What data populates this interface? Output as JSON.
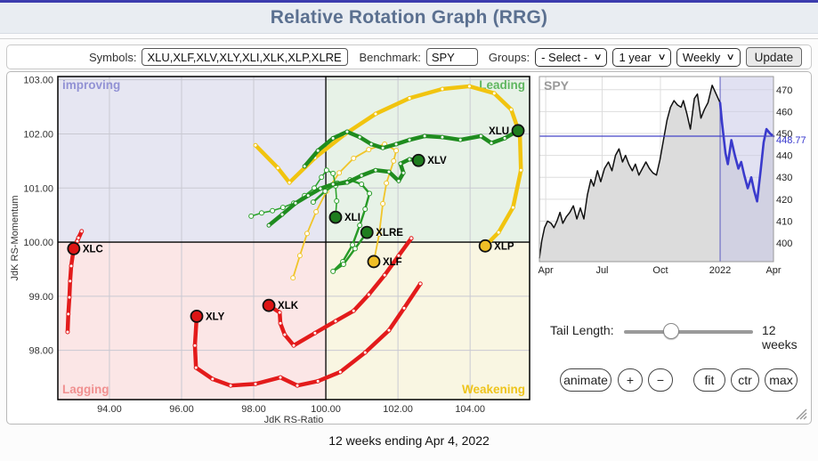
{
  "header": {
    "title": "Relative Rotation Graph (RRG)"
  },
  "controls": {
    "symbols_label": "Symbols:",
    "symbols_value": "XLU,XLF,XLV,XLY,XLI,XLK,XLP,XLRE,XLC",
    "benchmark_label": "Benchmark:",
    "benchmark_value": "SPY",
    "groups_label": "Groups:",
    "groups_value": "- Select -",
    "period_value": "1 year",
    "interval_value": "Weekly",
    "update_label": "Update"
  },
  "panel": {
    "spy_label": "SPY",
    "last_price": "448.77",
    "tail_length_label": "Tail Length:",
    "tail_length_value": "12 weeks",
    "buttons": [
      "animate",
      "+",
      "−",
      "fit",
      "ctr",
      "max"
    ]
  },
  "caption": "12 weeks ending Apr 4, 2022",
  "chart_data": [
    {
      "type": "scatter",
      "title": "Relative Rotation Graph",
      "xlabel": "JdK RS-Ratio",
      "ylabel": "JdK RS-Momentum",
      "xlim": [
        92.57,
        105.65
      ],
      "ylim": [
        97.09,
        103.06
      ],
      "x_ticks": [
        94,
        96,
        98,
        100,
        102,
        104
      ],
      "y_ticks": [
        98,
        99,
        100,
        101,
        102,
        103
      ],
      "center": [
        100,
        100
      ],
      "grid_color": "#c9c9d2",
      "quadrants": {
        "improving": {
          "label": "improving",
          "corner": "tl",
          "bg": "#e6e6f2",
          "label_color": "#9292d4"
        },
        "leading": {
          "label": "Leading",
          "corner": "tr",
          "bg": "#e7f2e7",
          "label_color": "#5fb65f"
        },
        "lagging": {
          "label": "Lagging",
          "corner": "bl",
          "bg": "#fbe6e6",
          "label_color": "#f09090"
        },
        "weakening": {
          "label": "Weakening",
          "corner": "br",
          "bg": "#f9f6e2",
          "label_color": "#eec41c"
        }
      },
      "series": [
        {
          "name": "XLF",
          "color": "#f0c52a",
          "marker_color": "#f0bf26",
          "width": 1.8,
          "dot_r": 2.5,
          "label_side": "right",
          "points": [
            [
              99.09,
              99.34
            ],
            [
              99.28,
              99.75
            ],
            [
              99.48,
              100.16
            ],
            [
              99.73,
              100.56
            ],
            [
              100.02,
              100.94
            ],
            [
              100.37,
              101.28
            ],
            [
              100.77,
              101.55
            ],
            [
              101.19,
              101.71
            ],
            [
              101.63,
              101.81
            ],
            [
              101.95,
              101.69
            ],
            [
              101.88,
              101.5
            ],
            [
              101.68,
              101.09
            ],
            [
              101.58,
              100.71
            ],
            [
              101.48,
              100.15
            ],
            [
              101.33,
              99.64
            ]
          ]
        },
        {
          "name": "XLI",
          "color": "#2da32d",
          "marker_color": "#1e7d1e",
          "width": 1.6,
          "dot_r": 2.5,
          "label_side": "right",
          "points": [
            [
              97.93,
              100.48
            ],
            [
              98.22,
              100.54
            ],
            [
              98.52,
              100.58
            ],
            [
              98.81,
              100.64
            ],
            [
              99.11,
              100.72
            ],
            [
              99.41,
              100.86
            ],
            [
              99.68,
              101.0
            ],
            [
              99.88,
              101.2
            ],
            [
              100.02,
              101.33
            ],
            [
              100.2,
              101.27
            ],
            [
              100.27,
              101.04
            ],
            [
              100.3,
              100.76
            ],
            [
              100.27,
              100.46
            ]
          ]
        },
        {
          "name": "XLRE",
          "color": "#279a27",
          "marker_color": "#1e7d1e",
          "width": 2.4,
          "dot_r": 2.5,
          "label_side": "right",
          "points": [
            [
              99.65,
              100.74
            ],
            [
              99.98,
              100.94
            ],
            [
              100.32,
              101.09
            ],
            [
              100.67,
              101.15
            ],
            [
              100.99,
              101.07
            ],
            [
              101.21,
              100.9
            ],
            [
              101.09,
              100.61
            ],
            [
              100.94,
              100.31
            ],
            [
              100.74,
              99.95
            ],
            [
              100.47,
              99.64
            ],
            [
              100.2,
              99.46
            ],
            [
              100.49,
              99.59
            ],
            [
              100.81,
              99.88
            ],
            [
              101.14,
              100.18
            ]
          ]
        },
        {
          "name": "XLP",
          "color": "#f1c40f",
          "marker_color": "#f0bf26",
          "width": 4.5,
          "dot_r": 2.0,
          "label_side": "right",
          "points": [
            [
              98.05,
              101.79
            ],
            [
              98.67,
              101.37
            ],
            [
              98.99,
              101.1
            ],
            [
              99.7,
              101.56
            ],
            [
              100.52,
              101.99
            ],
            [
              101.38,
              102.37
            ],
            [
              102.32,
              102.66
            ],
            [
              103.23,
              102.83
            ],
            [
              103.98,
              102.88
            ],
            [
              104.67,
              102.75
            ],
            [
              105.14,
              102.45
            ],
            [
              105.38,
              101.99
            ],
            [
              105.41,
              101.33
            ],
            [
              105.19,
              100.64
            ],
            [
              104.79,
              100.18
            ],
            [
              104.42,
              99.93
            ]
          ]
        },
        {
          "name": "XLU",
          "color": "#1f8c1f",
          "marker_color": "#1e7d1e",
          "width": 4.5,
          "dot_r": 2.0,
          "label_side": "left",
          "points": [
            [
              99.41,
              101.4
            ],
            [
              99.78,
              101.69
            ],
            [
              100.2,
              101.92
            ],
            [
              100.59,
              102.04
            ],
            [
              100.94,
              101.94
            ],
            [
              101.26,
              101.81
            ],
            [
              101.58,
              101.74
            ],
            [
              101.95,
              101.81
            ],
            [
              102.32,
              101.89
            ],
            [
              102.74,
              101.96
            ],
            [
              103.23,
              101.94
            ],
            [
              103.73,
              101.89
            ],
            [
              104.3,
              101.96
            ],
            [
              104.59,
              101.83
            ],
            [
              104.96,
              101.92
            ],
            [
              105.33,
              102.06
            ]
          ]
        },
        {
          "name": "XLV",
          "color": "#1f8c1f",
          "marker_color": "#1e7d1e",
          "width": 4.5,
          "dot_r": 2.0,
          "label_side": "right",
          "points": [
            [
              98.42,
              100.31
            ],
            [
              98.79,
              100.51
            ],
            [
              99.16,
              100.72
            ],
            [
              99.51,
              100.86
            ],
            [
              99.85,
              100.99
            ],
            [
              100.2,
              101.07
            ],
            [
              100.59,
              101.1
            ],
            [
              100.99,
              101.23
            ],
            [
              101.38,
              101.33
            ],
            [
              101.75,
              101.3
            ],
            [
              102.02,
              101.13
            ],
            [
              102.15,
              101.28
            ],
            [
              102.07,
              101.45
            ],
            [
              102.32,
              101.53
            ],
            [
              102.57,
              101.51
            ]
          ]
        },
        {
          "name": "XLC",
          "color": "#e31b1b",
          "marker_color": "#dd1414",
          "width": 4.5,
          "dot_r": 2.0,
          "label_side": "right",
          "points": [
            [
              92.84,
              98.34
            ],
            [
              92.86,
              98.67
            ],
            [
              92.89,
              98.98
            ],
            [
              92.91,
              99.28
            ],
            [
              92.94,
              99.56
            ],
            [
              92.99,
              99.79
            ],
            [
              93.11,
              100.02
            ],
            [
              93.23,
              100.2
            ],
            [
              93.14,
              100.08
            ],
            [
              93.01,
              99.88
            ]
          ]
        },
        {
          "name": "XLY",
          "color": "#e31b1b",
          "marker_color": "#dd1414",
          "width": 4.5,
          "dot_r": 2.0,
          "label_side": "right",
          "points": [
            [
              102.62,
              99.23
            ],
            [
              102.17,
              98.78
            ],
            [
              101.75,
              98.37
            ],
            [
              101.09,
              97.96
            ],
            [
              100.4,
              97.6
            ],
            [
              99.78,
              97.43
            ],
            [
              99.21,
              97.35
            ],
            [
              98.74,
              97.5
            ],
            [
              98.05,
              97.38
            ],
            [
              97.36,
              97.35
            ],
            [
              96.86,
              97.47
            ],
            [
              96.4,
              97.68
            ],
            [
              96.37,
              98.09
            ],
            [
              96.42,
              98.63
            ]
          ]
        },
        {
          "name": "XLK",
          "color": "#e31b1b",
          "marker_color": "#dd1414",
          "width": 4.5,
          "dot_r": 2.0,
          "label_side": "right",
          "points": [
            [
              102.37,
              100.07
            ],
            [
              102.02,
              99.75
            ],
            [
              101.63,
              99.39
            ],
            [
              101.19,
              99.03
            ],
            [
              100.77,
              98.73
            ],
            [
              100.27,
              98.54
            ],
            [
              99.7,
              98.32
            ],
            [
              99.11,
              98.09
            ],
            [
              98.86,
              98.29
            ],
            [
              98.74,
              98.5
            ],
            [
              98.72,
              98.7
            ],
            [
              98.42,
              98.83
            ]
          ]
        }
      ]
    },
    {
      "type": "area",
      "title": "SPY",
      "ylim": [
        391.5,
        476
      ],
      "y_ticks": [
        400,
        410,
        420,
        430,
        440,
        450,
        460,
        470
      ],
      "x_ticks": [
        {
          "label": "Apr",
          "pos": 0.027
        },
        {
          "label": "Jul",
          "pos": 0.268
        },
        {
          "label": "Oct",
          "pos": 0.517
        },
        {
          "label": "2022",
          "pos": 0.772
        },
        {
          "label": "Apr",
          "pos": 1.0
        }
      ],
      "highlight_start": 0.772,
      "last_value": 448.77,
      "line_color": "#111111",
      "fill_color": "#dcdcdc",
      "highlight_line_color": "#3a3acc",
      "highlight_fill": "#c9c9e8",
      "ref_line_color": "#4444c8",
      "points": [
        [
          0,
          393
        ],
        [
          0.01,
          401
        ],
        [
          0.022,
          407
        ],
        [
          0.035,
          410
        ],
        [
          0.05,
          409
        ],
        [
          0.062,
          407
        ],
        [
          0.075,
          410
        ],
        [
          0.088,
          414
        ],
        [
          0.1,
          409
        ],
        [
          0.115,
          412
        ],
        [
          0.13,
          414
        ],
        [
          0.145,
          417
        ],
        [
          0.16,
          411
        ],
        [
          0.175,
          416
        ],
        [
          0.19,
          411
        ],
        [
          0.205,
          422
        ],
        [
          0.22,
          429
        ],
        [
          0.232,
          426
        ],
        [
          0.248,
          433
        ],
        [
          0.262,
          428
        ],
        [
          0.278,
          434
        ],
        [
          0.295,
          437
        ],
        [
          0.31,
          433
        ],
        [
          0.325,
          440
        ],
        [
          0.34,
          443
        ],
        [
          0.355,
          437
        ],
        [
          0.368,
          440
        ],
        [
          0.382,
          436
        ],
        [
          0.397,
          433
        ],
        [
          0.41,
          436
        ],
        [
          0.425,
          431
        ],
        [
          0.44,
          434
        ],
        [
          0.455,
          437
        ],
        [
          0.47,
          434
        ],
        [
          0.485,
          432
        ],
        [
          0.5,
          431
        ],
        [
          0.515,
          438
        ],
        [
          0.53,
          447
        ],
        [
          0.545,
          456
        ],
        [
          0.56,
          462
        ],
        [
          0.575,
          465
        ],
        [
          0.59,
          463
        ],
        [
          0.605,
          462
        ],
        [
          0.615,
          465
        ],
        [
          0.63,
          459
        ],
        [
          0.645,
          452
        ],
        [
          0.662,
          466
        ],
        [
          0.675,
          468
        ],
        [
          0.69,
          457
        ],
        [
          0.705,
          461
        ],
        [
          0.72,
          464
        ],
        [
          0.738,
          472
        ],
        [
          0.755,
          468
        ],
        [
          0.772,
          464
        ],
        [
          0.78,
          455
        ],
        [
          0.795,
          441
        ],
        [
          0.805,
          436
        ],
        [
          0.82,
          447
        ],
        [
          0.835,
          440
        ],
        [
          0.85,
          434
        ],
        [
          0.862,
          437
        ],
        [
          0.875,
          431
        ],
        [
          0.89,
          425
        ],
        [
          0.905,
          430
        ],
        [
          0.917,
          424
        ],
        [
          0.93,
          419
        ],
        [
          0.945,
          433
        ],
        [
          0.958,
          446
        ],
        [
          0.97,
          452
        ],
        [
          0.985,
          450
        ],
        [
          1,
          448.77
        ]
      ]
    }
  ]
}
